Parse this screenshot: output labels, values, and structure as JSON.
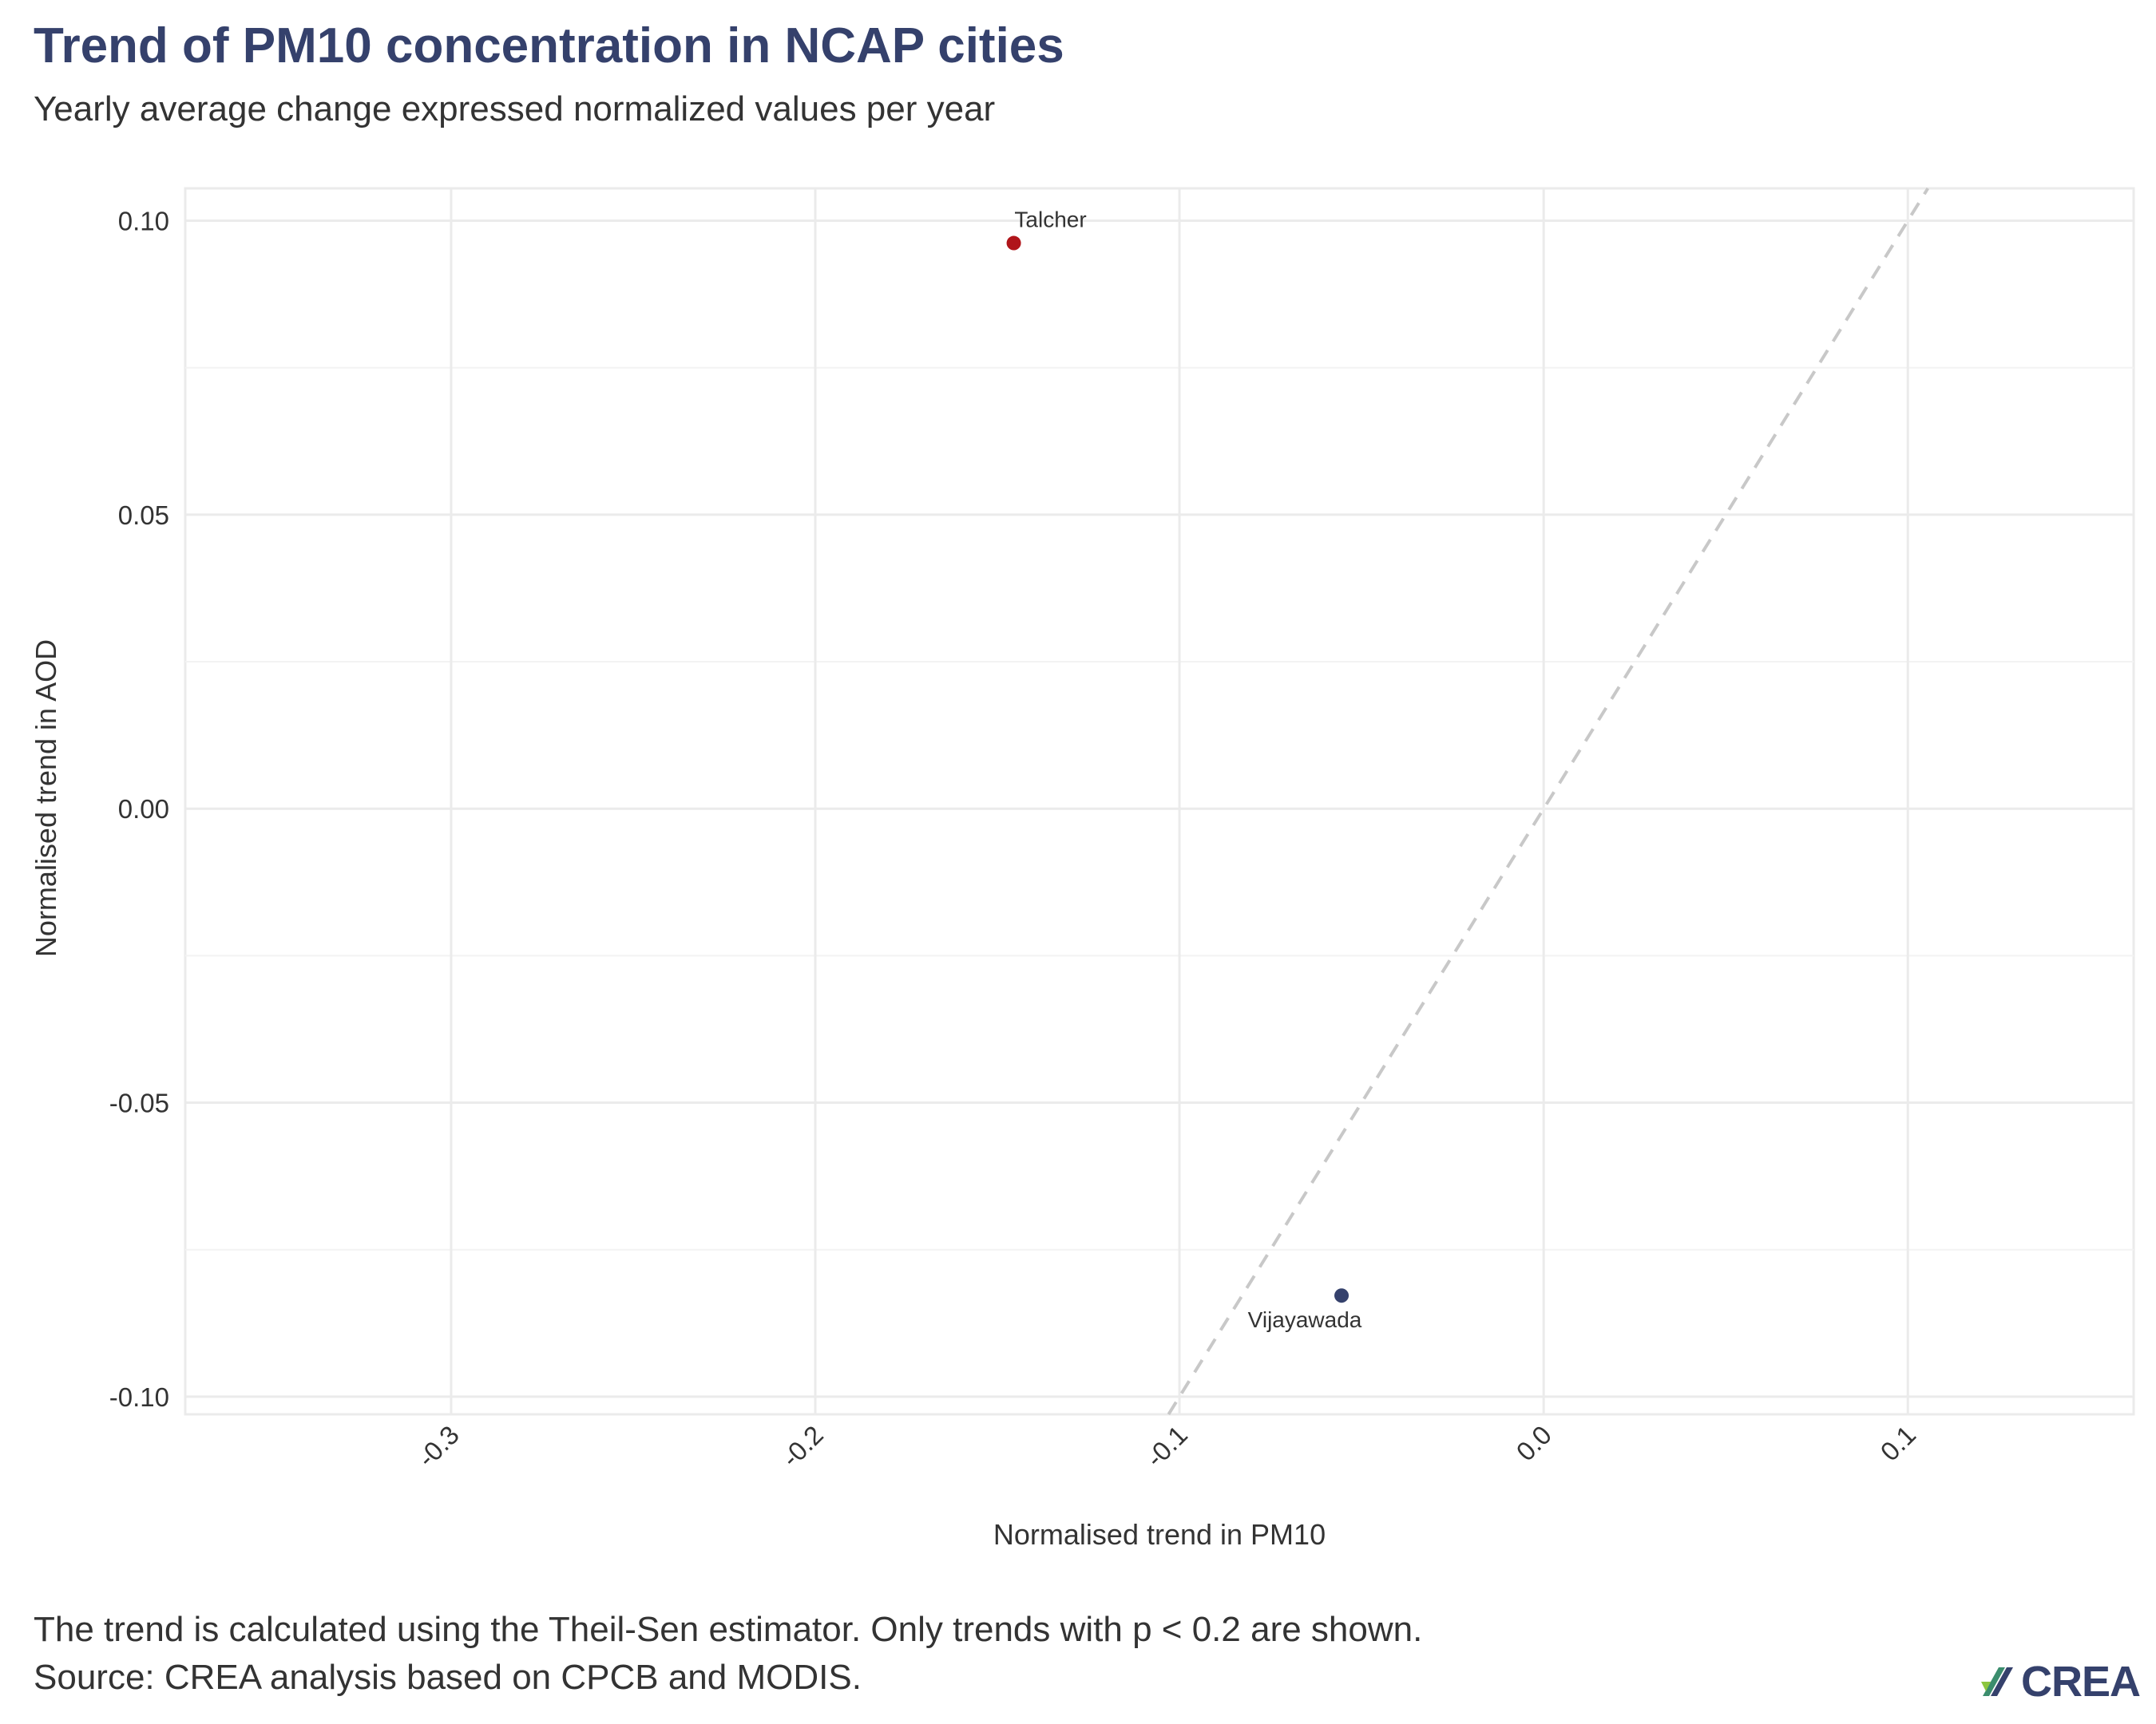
{
  "title": "Trend of PM10 concentration in NCAP cities",
  "subtitle": "Yearly average change expressed normalized values per year",
  "caption": {
    "line1": "The trend is calculated using the Theil-Sen estimator. Only trends with p < 0.2 are shown.",
    "line2": "Source: CREA analysis based on CPCB and MODIS."
  },
  "logo": {
    "text": "CREA",
    "icon": "crea-leaf-icon"
  },
  "colors": {
    "title": "#35416c",
    "point_red": "#b0151a",
    "point_blue": "#35416c",
    "grid": "#ebebeb",
    "reference_line": "#c8c8c8"
  },
  "chart_data": {
    "type": "scatter",
    "xlabel": "Normalised trend in PM10",
    "ylabel": "Normalised trend in AOD",
    "xlim": [
      -0.373,
      0.162
    ],
    "ylim": [
      -0.103,
      0.1055
    ],
    "x_ticks": [
      -0.3,
      -0.2,
      -0.1,
      0.0,
      0.1
    ],
    "x_tick_labels": [
      "-0.3",
      "-0.2",
      "-0.1",
      "0.0",
      "0.1"
    ],
    "y_ticks": [
      -0.1,
      -0.05,
      0.0,
      0.05,
      0.1
    ],
    "y_tick_labels": [
      "-0.10",
      "-0.05",
      "0.00",
      "0.05",
      "0.10"
    ],
    "grid": true,
    "reference_line": {
      "style": "dashed",
      "slope": 1,
      "intercept": 0
    },
    "points": [
      {
        "label": "Talcher",
        "x": -0.1455,
        "y": 0.0962,
        "color": "#b0151a",
        "label_position": "above"
      },
      {
        "label": "Vijayawada",
        "x": -0.0555,
        "y": -0.0828,
        "color": "#35416c",
        "label_position": "below"
      }
    ]
  }
}
